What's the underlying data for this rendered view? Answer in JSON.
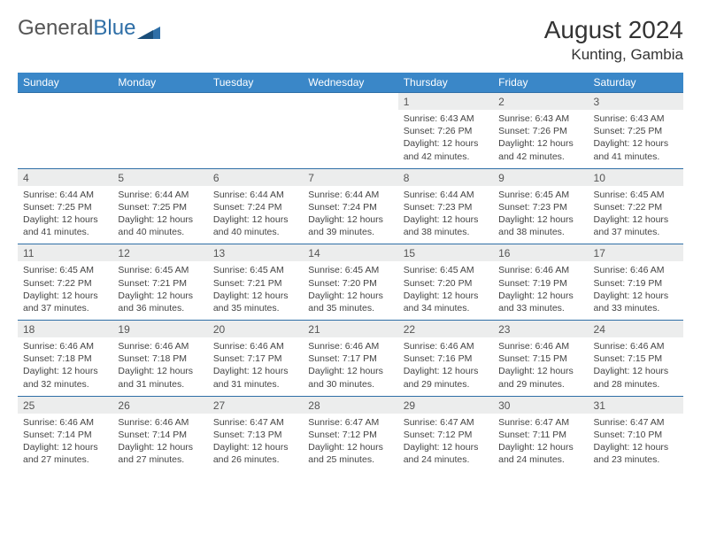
{
  "brand": {
    "part1": "General",
    "part2": "Blue"
  },
  "header": {
    "title": "August 2024",
    "location": "Kunting, Gambia"
  },
  "weekdays": [
    "Sunday",
    "Monday",
    "Tuesday",
    "Wednesday",
    "Thursday",
    "Friday",
    "Saturday"
  ],
  "colors": {
    "header_bg": "#3a87c8",
    "header_text": "#ffffff",
    "daynum_bg": "#eceded",
    "row_divider": "#2f6fa7",
    "body_text": "#444444",
    "page_bg": "#ffffff"
  },
  "typography": {
    "title_fontsize": 28,
    "location_fontsize": 17,
    "weekday_fontsize": 12,
    "daynum_fontsize": 12,
    "detail_fontsize": 10.5
  },
  "weeks": [
    {
      "nums": [
        "",
        "",
        "",
        "",
        "1",
        "2",
        "3"
      ],
      "details": [
        "",
        "",
        "",
        "",
        "Sunrise: 6:43 AM\nSunset: 7:26 PM\nDaylight: 12 hours and 42 minutes.",
        "Sunrise: 6:43 AM\nSunset: 7:26 PM\nDaylight: 12 hours and 42 minutes.",
        "Sunrise: 6:43 AM\nSunset: 7:25 PM\nDaylight: 12 hours and 41 minutes."
      ]
    },
    {
      "nums": [
        "4",
        "5",
        "6",
        "7",
        "8",
        "9",
        "10"
      ],
      "details": [
        "Sunrise: 6:44 AM\nSunset: 7:25 PM\nDaylight: 12 hours and 41 minutes.",
        "Sunrise: 6:44 AM\nSunset: 7:25 PM\nDaylight: 12 hours and 40 minutes.",
        "Sunrise: 6:44 AM\nSunset: 7:24 PM\nDaylight: 12 hours and 40 minutes.",
        "Sunrise: 6:44 AM\nSunset: 7:24 PM\nDaylight: 12 hours and 39 minutes.",
        "Sunrise: 6:44 AM\nSunset: 7:23 PM\nDaylight: 12 hours and 38 minutes.",
        "Sunrise: 6:45 AM\nSunset: 7:23 PM\nDaylight: 12 hours and 38 minutes.",
        "Sunrise: 6:45 AM\nSunset: 7:22 PM\nDaylight: 12 hours and 37 minutes."
      ]
    },
    {
      "nums": [
        "11",
        "12",
        "13",
        "14",
        "15",
        "16",
        "17"
      ],
      "details": [
        "Sunrise: 6:45 AM\nSunset: 7:22 PM\nDaylight: 12 hours and 37 minutes.",
        "Sunrise: 6:45 AM\nSunset: 7:21 PM\nDaylight: 12 hours and 36 minutes.",
        "Sunrise: 6:45 AM\nSunset: 7:21 PM\nDaylight: 12 hours and 35 minutes.",
        "Sunrise: 6:45 AM\nSunset: 7:20 PM\nDaylight: 12 hours and 35 minutes.",
        "Sunrise: 6:45 AM\nSunset: 7:20 PM\nDaylight: 12 hours and 34 minutes.",
        "Sunrise: 6:46 AM\nSunset: 7:19 PM\nDaylight: 12 hours and 33 minutes.",
        "Sunrise: 6:46 AM\nSunset: 7:19 PM\nDaylight: 12 hours and 33 minutes."
      ]
    },
    {
      "nums": [
        "18",
        "19",
        "20",
        "21",
        "22",
        "23",
        "24"
      ],
      "details": [
        "Sunrise: 6:46 AM\nSunset: 7:18 PM\nDaylight: 12 hours and 32 minutes.",
        "Sunrise: 6:46 AM\nSunset: 7:18 PM\nDaylight: 12 hours and 31 minutes.",
        "Sunrise: 6:46 AM\nSunset: 7:17 PM\nDaylight: 12 hours and 31 minutes.",
        "Sunrise: 6:46 AM\nSunset: 7:17 PM\nDaylight: 12 hours and 30 minutes.",
        "Sunrise: 6:46 AM\nSunset: 7:16 PM\nDaylight: 12 hours and 29 minutes.",
        "Sunrise: 6:46 AM\nSunset: 7:15 PM\nDaylight: 12 hours and 29 minutes.",
        "Sunrise: 6:46 AM\nSunset: 7:15 PM\nDaylight: 12 hours and 28 minutes."
      ]
    },
    {
      "nums": [
        "25",
        "26",
        "27",
        "28",
        "29",
        "30",
        "31"
      ],
      "details": [
        "Sunrise: 6:46 AM\nSunset: 7:14 PM\nDaylight: 12 hours and 27 minutes.",
        "Sunrise: 6:46 AM\nSunset: 7:14 PM\nDaylight: 12 hours and 27 minutes.",
        "Sunrise: 6:47 AM\nSunset: 7:13 PM\nDaylight: 12 hours and 26 minutes.",
        "Sunrise: 6:47 AM\nSunset: 7:12 PM\nDaylight: 12 hours and 25 minutes.",
        "Sunrise: 6:47 AM\nSunset: 7:12 PM\nDaylight: 12 hours and 24 minutes.",
        "Sunrise: 6:47 AM\nSunset: 7:11 PM\nDaylight: 12 hours and 24 minutes.",
        "Sunrise: 6:47 AM\nSunset: 7:10 PM\nDaylight: 12 hours and 23 minutes."
      ]
    }
  ]
}
